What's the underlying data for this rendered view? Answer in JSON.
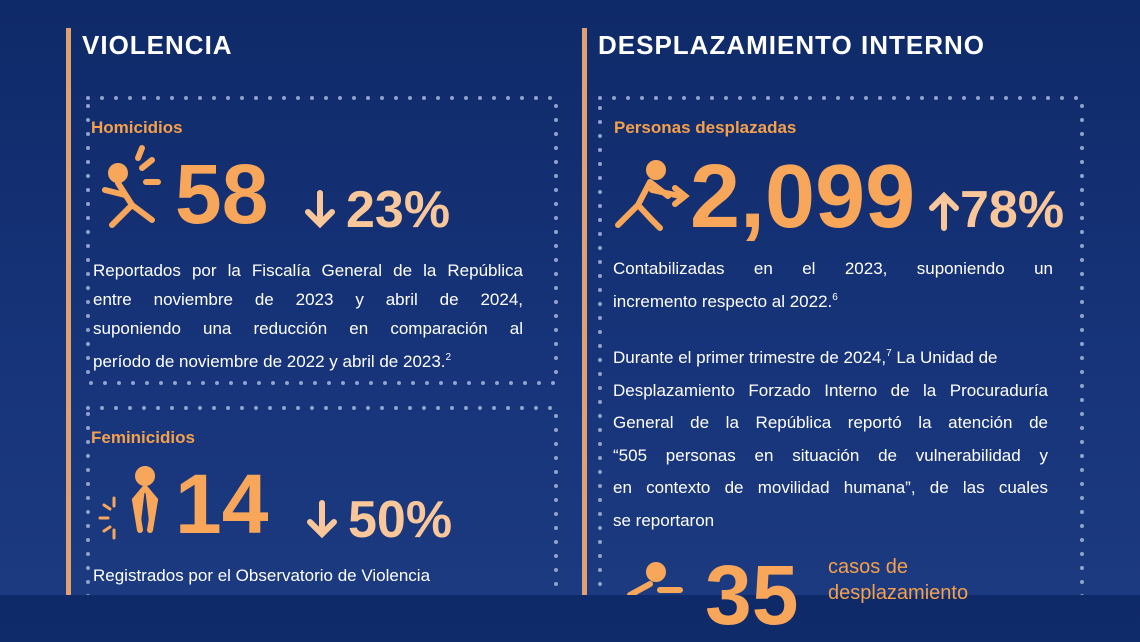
{
  "left": {
    "title": "VIOLENCIA",
    "homicidios": {
      "label": "Homicidios",
      "number": "58",
      "change": "23%",
      "lines": [
        [
          "Reportados por la Fiscalía General de la República"
        ],
        [
          "entre noviembre de 2023 y abril de 2024,"
        ],
        [
          "suponiendo una reducción en comparación al"
        ],
        [
          "período de noviembre de 2022 y abril de 2023.",
          "2"
        ]
      ]
    },
    "feminicidios": {
      "label": "Feminicidios",
      "number": "14",
      "change": "50%",
      "lines": [
        [
          "Registrados por el Observatorio de Violencia"
        ]
      ]
    }
  },
  "right": {
    "title": "DESPLAZAMIENTO INTERNO",
    "personas": {
      "label": "Personas desplazadas",
      "number": "2,099",
      "change": "78%",
      "lines": [
        [
          "Contabilizadas en el 2023, suponiendo un"
        ],
        [
          "incremento respecto al 2022.",
          "6"
        ]
      ],
      "lines2": [
        [
          "Durante el primer trimestre de 2024,",
          "7",
          " La Unidad de"
        ],
        [
          "Desplazamiento Forzado Interno de la Procuraduría"
        ],
        [
          "General de la República reportó la atención de"
        ],
        [
          "“505 personas en situación de vulnerabilidad y"
        ],
        [
          "en contexto de movilidad humana”, de las cuales"
        ],
        [
          "se reportaron"
        ]
      ]
    },
    "casos": {
      "number": "35",
      "label1": "casos de",
      "label2": "desplazamiento"
    }
  }
}
